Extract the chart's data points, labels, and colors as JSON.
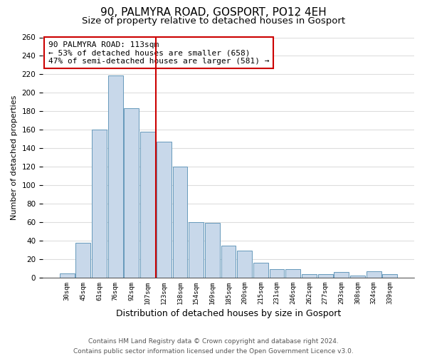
{
  "title": "90, PALMYRA ROAD, GOSPORT, PO12 4EH",
  "subtitle": "Size of property relative to detached houses in Gosport",
  "xlabel": "Distribution of detached houses by size in Gosport",
  "ylabel": "Number of detached properties",
  "bar_labels": [
    "30sqm",
    "45sqm",
    "61sqm",
    "76sqm",
    "92sqm",
    "107sqm",
    "123sqm",
    "138sqm",
    "154sqm",
    "169sqm",
    "185sqm",
    "200sqm",
    "215sqm",
    "231sqm",
    "246sqm",
    "262sqm",
    "277sqm",
    "293sqm",
    "308sqm",
    "324sqm",
    "339sqm"
  ],
  "bar_values": [
    5,
    38,
    160,
    219,
    183,
    158,
    147,
    120,
    60,
    59,
    35,
    29,
    16,
    9,
    9,
    4,
    4,
    6,
    2,
    7,
    4
  ],
  "bar_color": "#c8d8ea",
  "bar_edge_color": "#6699bb",
  "vline_x": 5.5,
  "vline_color": "#cc0000",
  "annotation_text": "90 PALMYRA ROAD: 113sqm\n← 53% of detached houses are smaller (658)\n47% of semi-detached houses are larger (581) →",
  "annotation_box_edge": "#cc0000",
  "ylim": [
    0,
    260
  ],
  "yticks": [
    0,
    20,
    40,
    60,
    80,
    100,
    120,
    140,
    160,
    180,
    200,
    220,
    240,
    260
  ],
  "footer_line1": "Contains HM Land Registry data © Crown copyright and database right 2024.",
  "footer_line2": "Contains public sector information licensed under the Open Government Licence v3.0.",
  "title_fontsize": 11,
  "subtitle_fontsize": 9.5,
  "xlabel_fontsize": 9,
  "ylabel_fontsize": 8,
  "annotation_fontsize": 8,
  "xtick_fontsize": 6.5,
  "ytick_fontsize": 7.5,
  "footer_fontsize": 6.5,
  "background_color": "#ffffff",
  "grid_color": "#dddddd"
}
